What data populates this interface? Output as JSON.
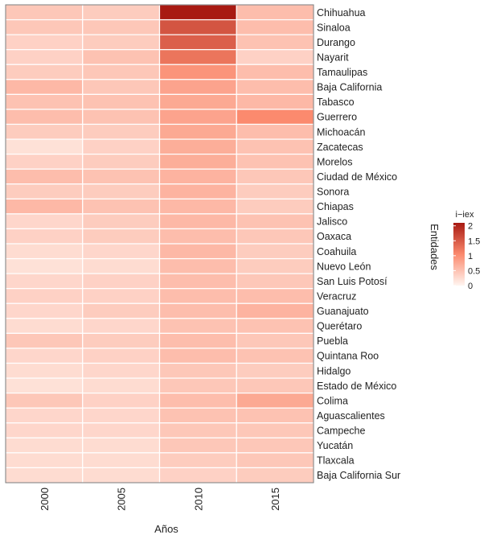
{
  "chart_data": {
    "type": "heatmap",
    "title": "",
    "xlabel": "Años",
    "ylabel": "Entidades",
    "x": [
      "2000",
      "2005",
      "2010",
      "2015"
    ],
    "y": [
      "Chihuahua",
      "Sinaloa",
      "Durango",
      "Nayarit",
      "Tamaulipas",
      "Baja California",
      "Tabasco",
      "Guerrero",
      "Michoacán",
      "Zacatecas",
      "Morelos",
      "Ciudad de México",
      "Sonora",
      "Chiapas",
      "Jalisco",
      "Oaxaca",
      "Coahuila",
      "Nuevo León",
      "San Luis Potosí",
      "Veracruz",
      "Guanajuato",
      "Querétaro",
      "Puebla",
      "Quintana Roo",
      "Hidalgo",
      "Estado de México",
      "Colima",
      "Aguascalientes",
      "Campeche",
      "Yucatán",
      "Tlaxcala",
      "Baja California Sur"
    ],
    "values": [
      [
        0.45,
        0.4,
        2.1,
        0.55
      ],
      [
        0.45,
        0.45,
        1.55,
        0.55
      ],
      [
        0.35,
        0.4,
        1.45,
        0.5
      ],
      [
        0.35,
        0.5,
        1.25,
        0.35
      ],
      [
        0.4,
        0.45,
        0.95,
        0.55
      ],
      [
        0.6,
        0.45,
        0.8,
        0.55
      ],
      [
        0.5,
        0.5,
        0.75,
        0.6
      ],
      [
        0.55,
        0.5,
        0.8,
        1.05
      ],
      [
        0.4,
        0.4,
        0.75,
        0.55
      ],
      [
        0.2,
        0.35,
        0.7,
        0.5
      ],
      [
        0.35,
        0.4,
        0.7,
        0.5
      ],
      [
        0.55,
        0.5,
        0.65,
        0.45
      ],
      [
        0.4,
        0.4,
        0.65,
        0.4
      ],
      [
        0.6,
        0.5,
        0.6,
        0.4
      ],
      [
        0.3,
        0.4,
        0.6,
        0.5
      ],
      [
        0.35,
        0.4,
        0.55,
        0.45
      ],
      [
        0.25,
        0.3,
        0.6,
        0.4
      ],
      [
        0.2,
        0.25,
        0.55,
        0.4
      ],
      [
        0.3,
        0.35,
        0.55,
        0.45
      ],
      [
        0.35,
        0.35,
        0.55,
        0.55
      ],
      [
        0.3,
        0.4,
        0.55,
        0.65
      ],
      [
        0.25,
        0.3,
        0.5,
        0.5
      ],
      [
        0.45,
        0.4,
        0.55,
        0.45
      ],
      [
        0.3,
        0.35,
        0.55,
        0.5
      ],
      [
        0.25,
        0.3,
        0.45,
        0.4
      ],
      [
        0.2,
        0.25,
        0.45,
        0.45
      ],
      [
        0.45,
        0.35,
        0.55,
        0.75
      ],
      [
        0.3,
        0.3,
        0.5,
        0.5
      ],
      [
        0.3,
        0.3,
        0.45,
        0.45
      ],
      [
        0.25,
        0.25,
        0.45,
        0.45
      ],
      [
        0.25,
        0.25,
        0.4,
        0.45
      ],
      [
        0.25,
        0.25,
        0.35,
        0.4
      ]
    ],
    "color_scale": {
      "low": "#fff5f0",
      "mid": "#fb8a6e",
      "high": "#a81a12",
      "range": [
        0,
        2.1
      ]
    },
    "legend": {
      "title": "i−iex",
      "ticks": [
        0,
        0.5,
        1,
        1.5,
        2
      ],
      "tick_labels": [
        "0",
        "0.5",
        "1",
        "1.5",
        "2"
      ],
      "position": "right"
    },
    "grid": false
  }
}
